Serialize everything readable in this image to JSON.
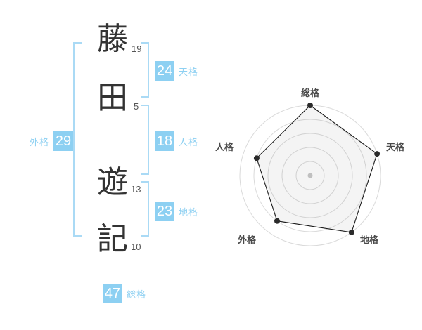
{
  "name_analysis": {
    "characters": [
      {
        "char": "藤",
        "strokes": "19"
      },
      {
        "char": "田",
        "strokes": "5"
      },
      {
        "char": "遊",
        "strokes": "13"
      },
      {
        "char": "記",
        "strokes": "10"
      }
    ],
    "badges": {
      "tenkaku": {
        "value": "24",
        "label": "天格"
      },
      "jinkaku": {
        "value": "18",
        "label": "人格"
      },
      "chikaku": {
        "value": "23",
        "label": "地格"
      },
      "gaikaku": {
        "value": "29",
        "label": "外格"
      },
      "soukaku": {
        "value": "47",
        "label": "総格"
      }
    }
  },
  "colors": {
    "accent_blue": "#8DD0F2",
    "bracket_blue": "#AADAF5",
    "character_ink": "#333333"
  },
  "chart_data": {
    "type": "radar",
    "axes": [
      "総格",
      "天格",
      "地格",
      "外格",
      "人格"
    ],
    "values": [
      5,
      5,
      5,
      4,
      4
    ],
    "max": 5,
    "rings": 5,
    "grid": true,
    "legend": false
  }
}
